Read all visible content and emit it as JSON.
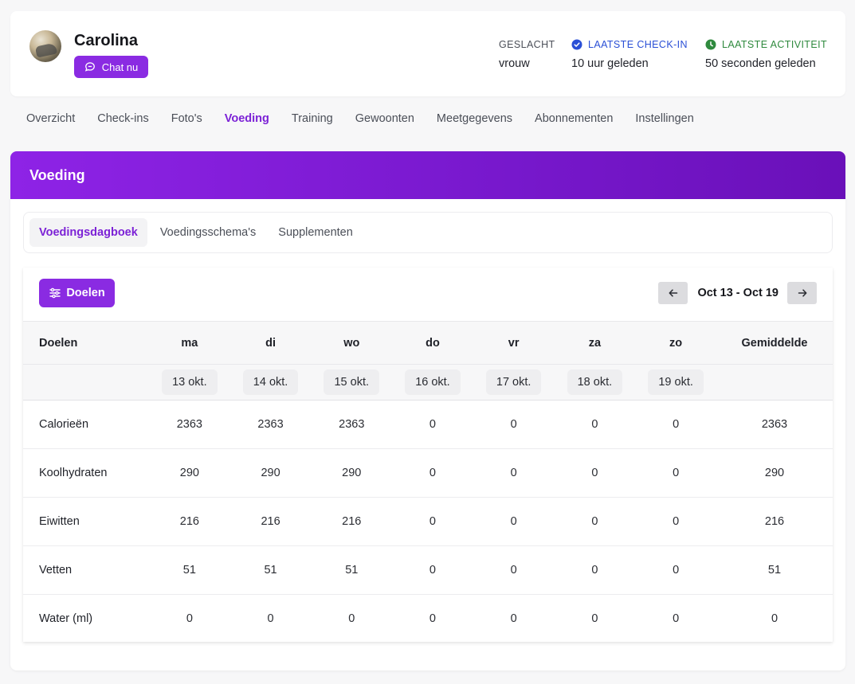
{
  "profile": {
    "name": "Carolina",
    "chat_label": "Chat nu",
    "gender_label": "GESLACHT",
    "gender_value": "vrouw",
    "checkin_label": "LAATSTE CHECK-IN",
    "checkin_value": "10 uur geleden",
    "activity_label": "LAATSTE ACTIVITEIT",
    "activity_value": "50 seconden geleden"
  },
  "nav": [
    "Overzicht",
    "Check-ins",
    "Foto's",
    "Voeding",
    "Training",
    "Gewoonten",
    "Meetgegevens",
    "Abonnementen",
    "Instellingen"
  ],
  "nav_active": "Voeding",
  "section": {
    "title": "Voeding"
  },
  "subtabs": [
    "Voedingsdagboek",
    "Voedingsschema's",
    "Supplementen"
  ],
  "subtab_active": "Voedingsdagboek",
  "diary": {
    "goals_button": "Doelen",
    "week_range": "Oct 13 - Oct 19",
    "columns": [
      "Doelen",
      "ma",
      "di",
      "wo",
      "do",
      "vr",
      "za",
      "zo",
      "Gemiddelde"
    ],
    "dates": [
      "13 okt.",
      "14 okt.",
      "15 okt.",
      "16 okt.",
      "17 okt.",
      "18 okt.",
      "19 okt."
    ],
    "rows": [
      {
        "label": "Calorieën",
        "values": [
          "2363",
          "2363",
          "2363",
          "0",
          "0",
          "0",
          "0"
        ],
        "average": "2363"
      },
      {
        "label": "Koolhydraten",
        "values": [
          "290",
          "290",
          "290",
          "0",
          "0",
          "0",
          "0"
        ],
        "average": "290"
      },
      {
        "label": "Eiwitten",
        "values": [
          "216",
          "216",
          "216",
          "0",
          "0",
          "0",
          "0"
        ],
        "average": "216"
      },
      {
        "label": "Vetten",
        "values": [
          "51",
          "51",
          "51",
          "0",
          "0",
          "0",
          "0"
        ],
        "average": "51"
      },
      {
        "label": "Water (ml)",
        "values": [
          "0",
          "0",
          "0",
          "0",
          "0",
          "0",
          "0"
        ],
        "average": "0"
      }
    ]
  },
  "colors": {
    "accent": "#8a2be2",
    "checkin": "#2a4fd6",
    "activity": "#2f8a3e"
  },
  "icons": {
    "chat": "chat-bubble-icon",
    "checkin": "check-circle-icon",
    "activity": "clock-icon",
    "goals": "sliders-icon",
    "prev": "arrow-left-icon",
    "next": "arrow-right-icon"
  }
}
